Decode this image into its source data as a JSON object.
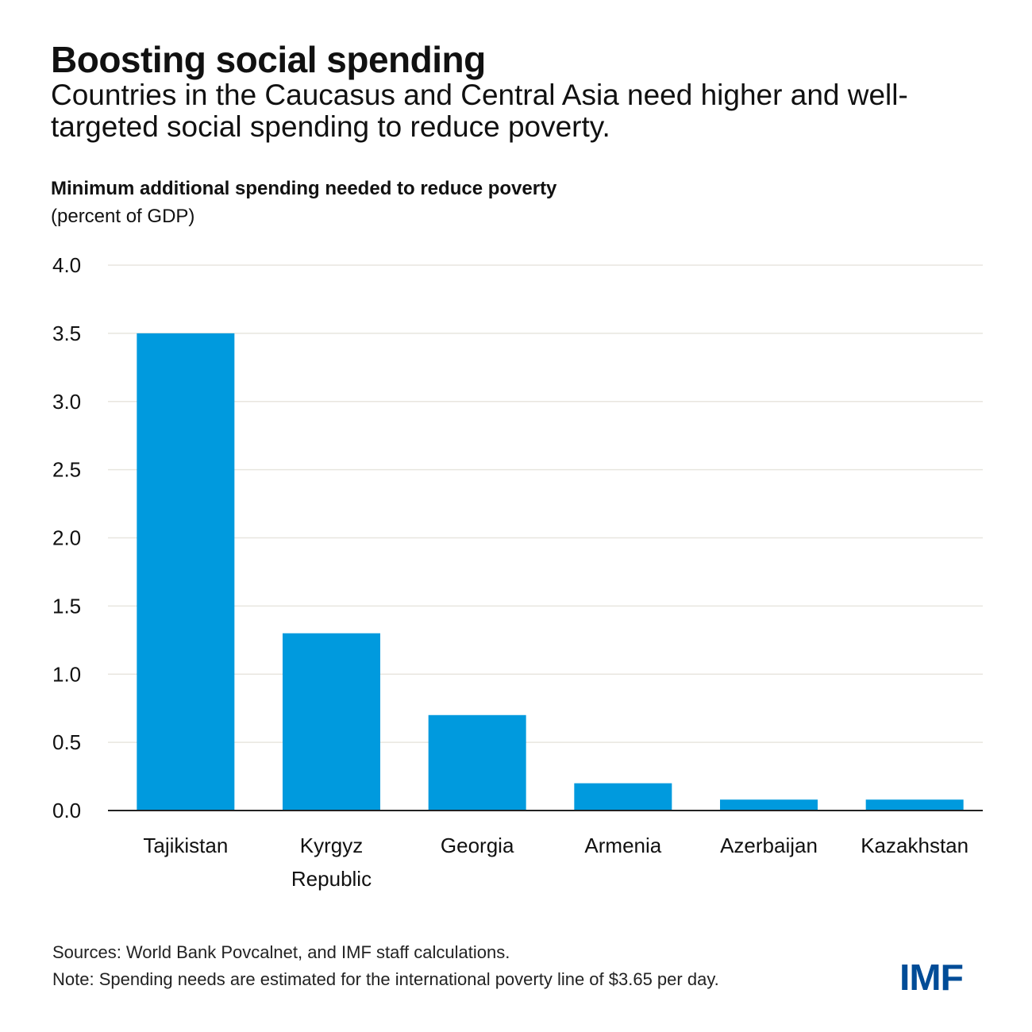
{
  "header": {
    "title": "Boosting social spending",
    "subtitle": "Countries in the Caucasus and Central Asia need higher and well-targeted social spending to reduce poverty."
  },
  "footer": {
    "sources": "Sources: World Bank Povcalnet, and IMF staff calculations.",
    "note": "Note: Spending needs are estimated for the international poverty line of $3.65 per day.",
    "logo": "IMF"
  },
  "colors": {
    "bar": "#009ade",
    "grid": "#e8e6df",
    "axis": "#222222",
    "logo": "#004c97"
  },
  "chart_data": {
    "type": "bar",
    "title": "Minimum additional spending needed to reduce poverty",
    "ylabel": "(percent of GDP)",
    "xlabel": "",
    "categories": [
      [
        "Tajikistan"
      ],
      [
        "Kyrgyz",
        "Republic"
      ],
      [
        "Georgia"
      ],
      [
        "Armenia"
      ],
      [
        "Azerbaijan"
      ],
      [
        "Kazakhstan"
      ]
    ],
    "values": [
      3.5,
      1.3,
      0.7,
      0.2,
      0.08,
      0.08
    ],
    "ylim": [
      0,
      4.0
    ],
    "yticks": [
      "0.0",
      "0.5",
      "1.0",
      "1.5",
      "2.0",
      "2.5",
      "3.0",
      "3.5",
      "4.0"
    ],
    "grid": true,
    "legend": "none"
  }
}
